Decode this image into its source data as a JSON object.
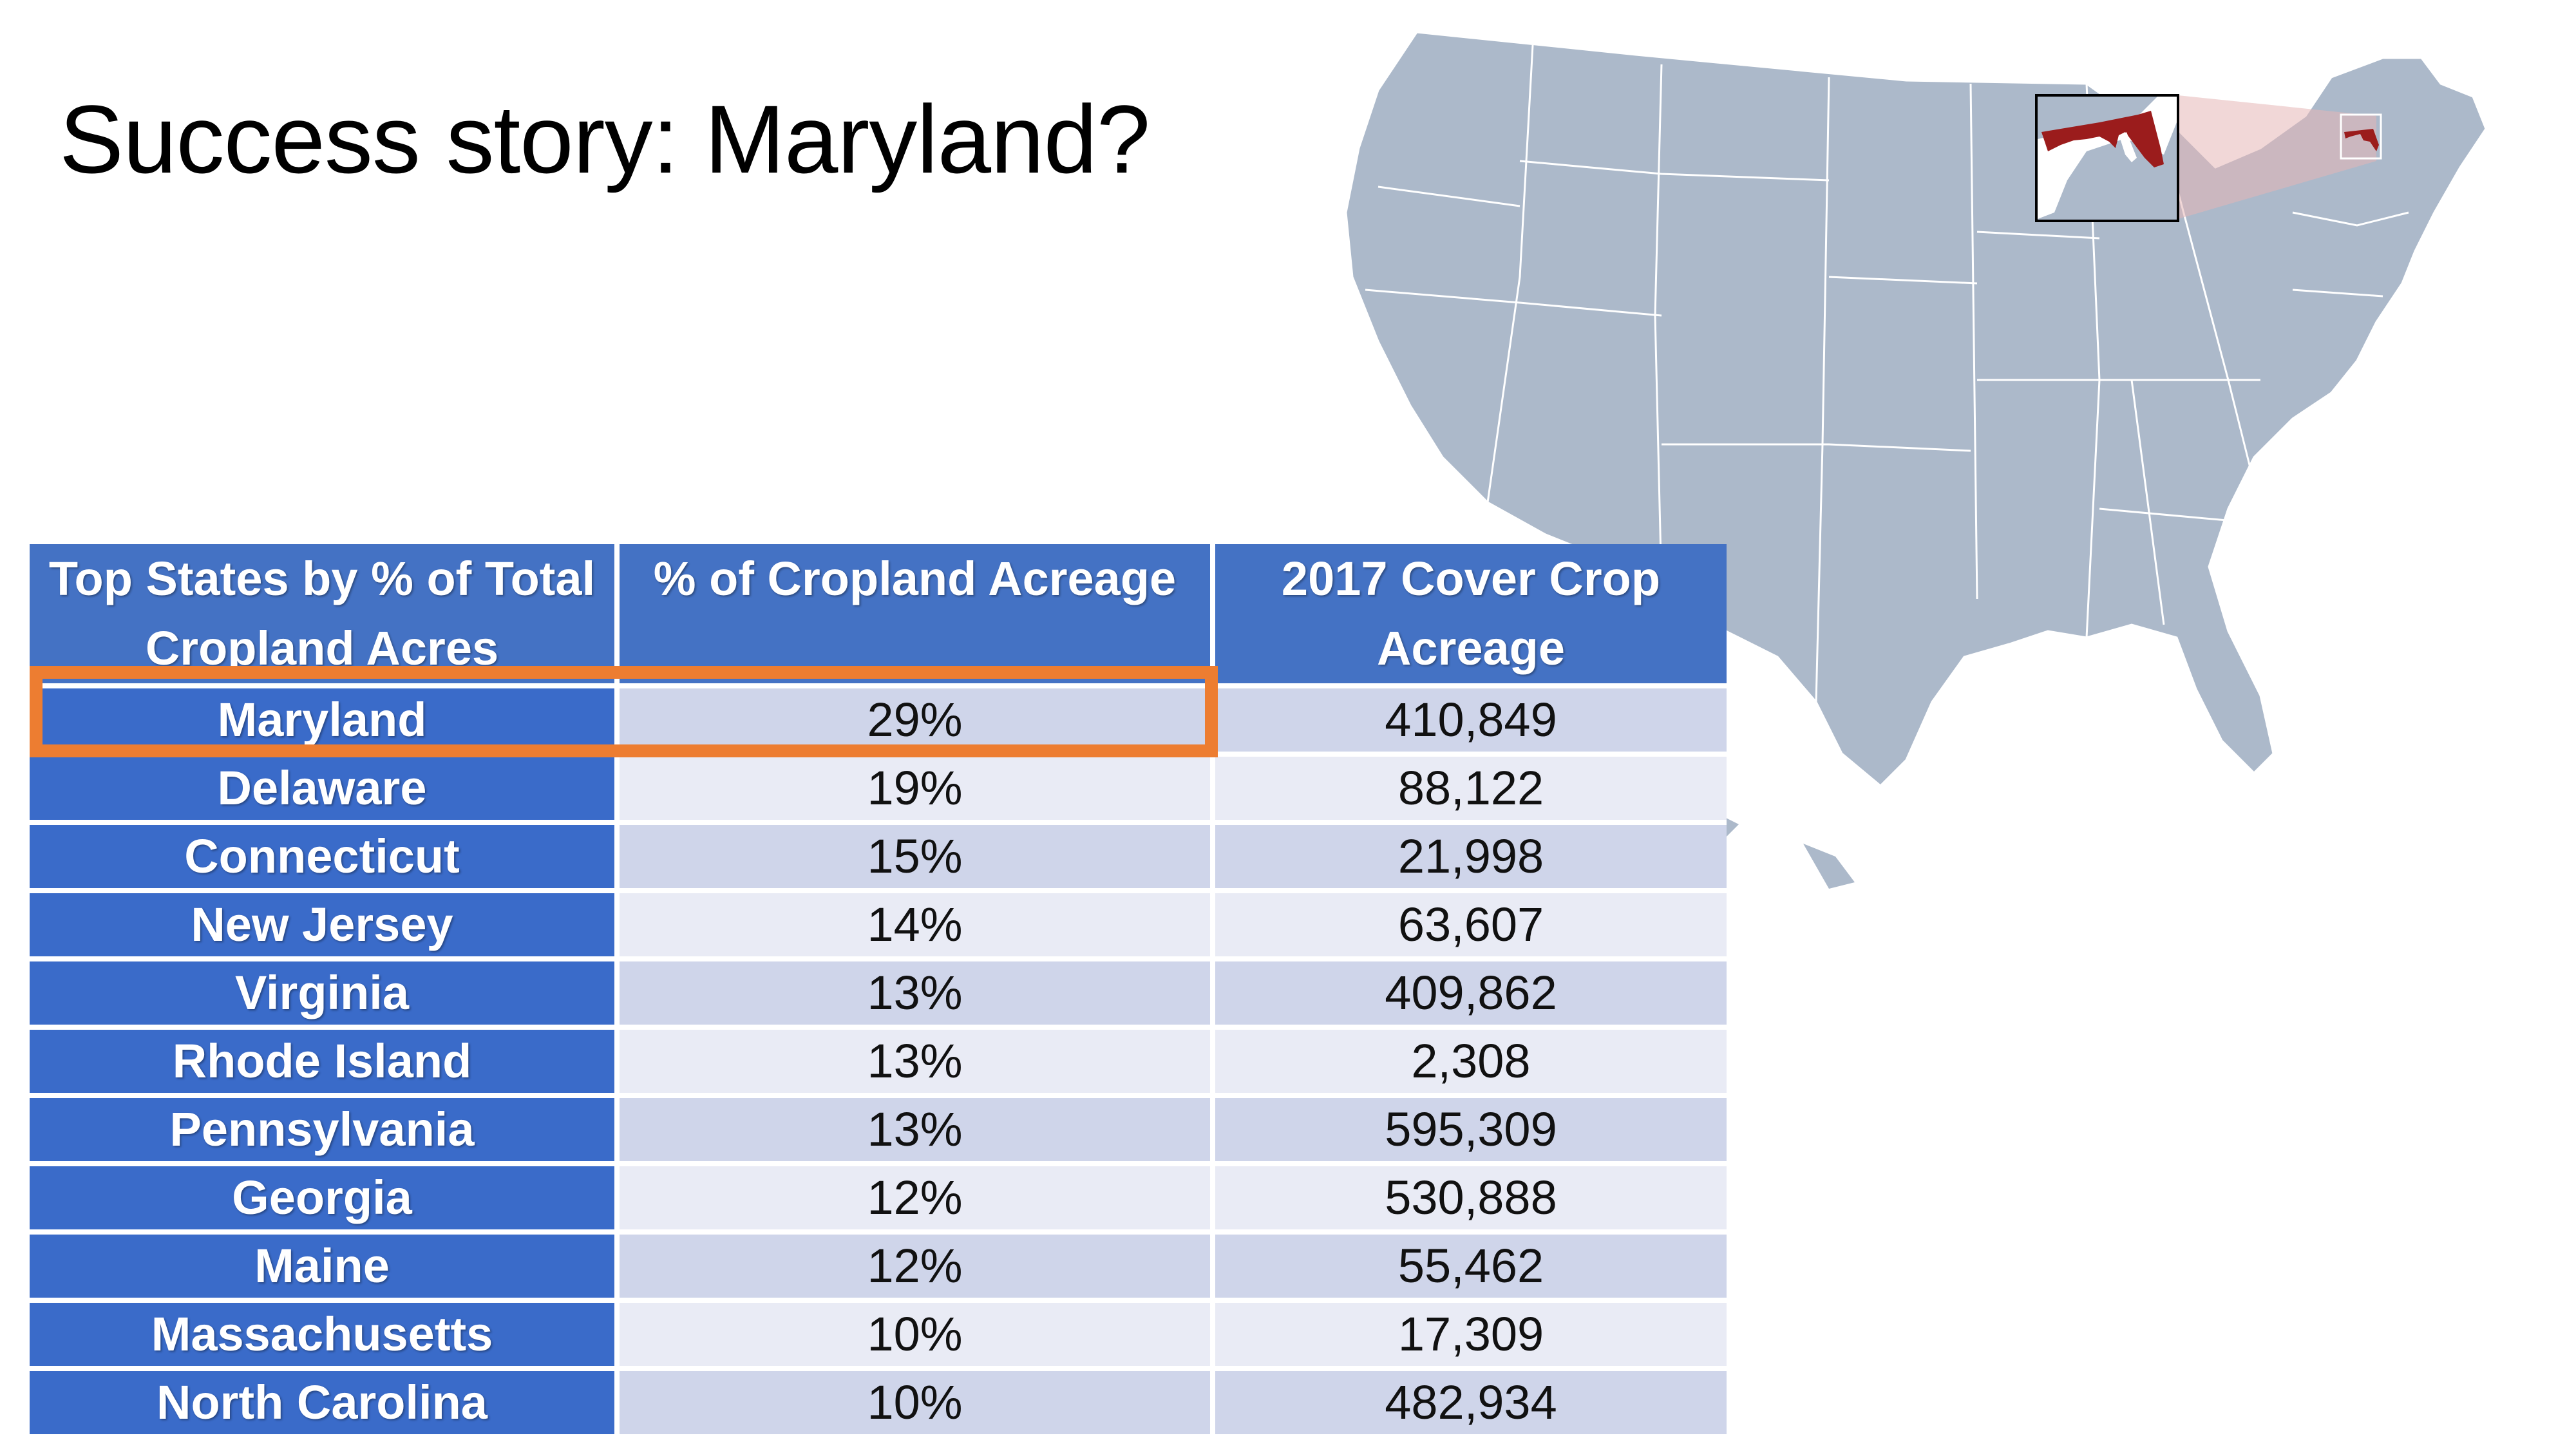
{
  "title": "Success story: Maryland?",
  "colors": {
    "header_blue": "#4472c4",
    "state_blue": "#3a6bc9",
    "row_odd": "#cfd5ea",
    "row_even": "#e9ebf5",
    "highlight_orange": "#ed7d31",
    "map_fill": "#acb9ca",
    "maryland_fill": "#9b1c1c"
  },
  "map": {
    "icon": "us-map-icon",
    "highlight_state": "Maryland"
  },
  "table": {
    "headers": [
      "Top States by % of Total Cropland Acres",
      "% of Cropland Acreage",
      "2017 Cover Crop Acreage"
    ],
    "rows": [
      {
        "state": "Maryland",
        "percent": "29%",
        "acreage": "410,849"
      },
      {
        "state": "Delaware",
        "percent": "19%",
        "acreage": "88,122"
      },
      {
        "state": "Connecticut",
        "percent": "15%",
        "acreage": "21,998"
      },
      {
        "state": "New Jersey",
        "percent": "14%",
        "acreage": "63,607"
      },
      {
        "state": "Virginia",
        "percent": "13%",
        "acreage": "409,862"
      },
      {
        "state": "Rhode Island",
        "percent": "13%",
        "acreage": "2,308"
      },
      {
        "state": "Pennsylvania",
        "percent": "13%",
        "acreage": "595,309"
      },
      {
        "state": "Georgia",
        "percent": "12%",
        "acreage": "530,888"
      },
      {
        "state": "Maine",
        "percent": "12%",
        "acreage": "55,462"
      },
      {
        "state": "Massachusetts",
        "percent": "10%",
        "acreage": "17,309"
      },
      {
        "state": "North Carolina",
        "percent": "10%",
        "acreage": "482,934"
      }
    ]
  }
}
